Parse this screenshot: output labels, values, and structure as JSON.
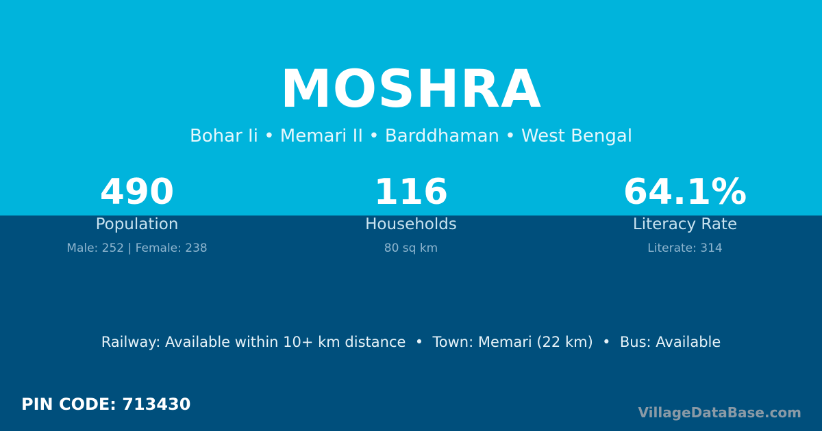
{
  "colors": {
    "top_band": "#00b4dc",
    "bottom_band": "#004f7c"
  },
  "village": {
    "name": "MOSHRA",
    "location": "Bohar Ii • Memari II • Barddhaman • West Bengal"
  },
  "stats": [
    {
      "value": "490",
      "label": "Population",
      "detail": "Male: 252 | Female: 238"
    },
    {
      "value": "116",
      "label": "Households",
      "detail": "80 sq km"
    },
    {
      "value": "64.1%",
      "label": "Literacy Rate",
      "detail": "Literate: 314"
    }
  ],
  "access": "Railway: Available within 10+ km distance  •  Town: Memari (22 km)  •  Bus: Available",
  "pin_code": "PIN CODE: 713430",
  "brand": "VillageDataBase.com"
}
